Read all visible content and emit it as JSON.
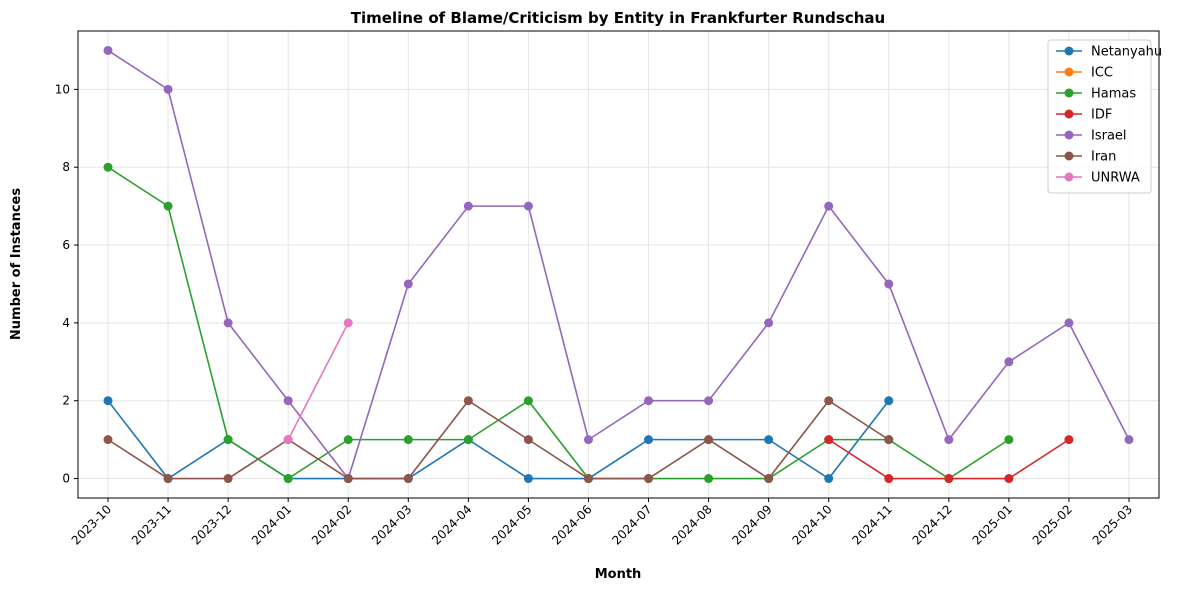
{
  "chart_data": {
    "type": "line",
    "title": "Timeline of Blame/Criticism by Entity in Frankfurter Rundschau",
    "xlabel": "Month",
    "ylabel": "Number of Instances",
    "categories": [
      "2023-10",
      "2023-11",
      "2023-12",
      "2024-01",
      "2024-02",
      "2024-03",
      "2024-04",
      "2024-05",
      "2024-06",
      "2024-07",
      "2024-08",
      "2024-09",
      "2024-10",
      "2024-11",
      "2024-12",
      "2025-01",
      "2025-02",
      "2025-03"
    ],
    "ylim": [
      -0.5,
      11.5
    ],
    "yticks": [
      0,
      2,
      4,
      6,
      8,
      10
    ],
    "grid": true,
    "legend_position": "top-right",
    "series": [
      {
        "name": "Netanyahu",
        "color": "#1f77b4",
        "values": [
          2,
          0,
          1,
          0,
          0,
          0,
          1,
          0,
          0,
          1,
          1,
          1,
          0,
          2,
          null,
          null,
          null,
          null
        ]
      },
      {
        "name": "ICC",
        "color": "#ff7f0e",
        "values": [
          null,
          null,
          null,
          null,
          null,
          null,
          null,
          null,
          null,
          null,
          null,
          null,
          null,
          null,
          null,
          null,
          null,
          null
        ]
      },
      {
        "name": "Hamas",
        "color": "#2ca02c",
        "values": [
          8,
          7,
          1,
          0,
          1,
          1,
          1,
          2,
          0,
          0,
          0,
          0,
          1,
          1,
          0,
          1,
          null,
          null
        ]
      },
      {
        "name": "IDF",
        "color": "#d62728",
        "values": [
          null,
          null,
          null,
          null,
          null,
          null,
          null,
          null,
          null,
          null,
          null,
          null,
          1,
          0,
          0,
          0,
          1,
          null
        ]
      },
      {
        "name": "Israel",
        "color": "#9467bd",
        "values": [
          11,
          10,
          4,
          2,
          0,
          5,
          7,
          7,
          1,
          2,
          2,
          4,
          7,
          5,
          1,
          3,
          4,
          1
        ]
      },
      {
        "name": "Iran",
        "color": "#8c564b",
        "values": [
          1,
          0,
          0,
          1,
          0,
          0,
          2,
          1,
          0,
          0,
          1,
          0,
          2,
          1,
          null,
          null,
          null,
          null
        ]
      },
      {
        "name": "UNRWA",
        "color": "#e377c2",
        "values": [
          null,
          null,
          null,
          1,
          4,
          null,
          null,
          null,
          null,
          null,
          null,
          null,
          null,
          null,
          null,
          null,
          null,
          null
        ]
      }
    ]
  }
}
